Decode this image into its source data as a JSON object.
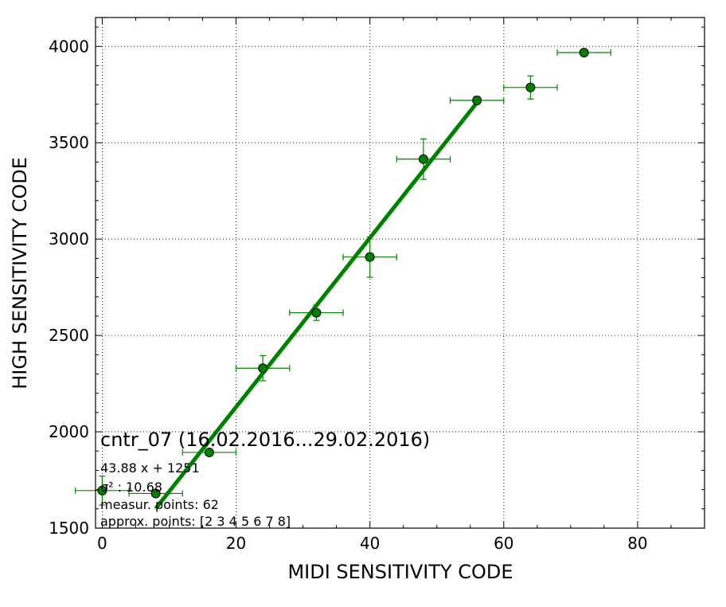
{
  "chart_data": {
    "type": "scatter",
    "xlabel": "MIDI SENSITIVITY CODE",
    "ylabel": "HIGH SENSITIVITY CODE",
    "xlim": [
      -1,
      90
    ],
    "ylim": [
      1500,
      4150
    ],
    "xticks": [
      0,
      20,
      40,
      60,
      80
    ],
    "xtick_labels": [
      "0",
      "20",
      "40",
      "60",
      "80"
    ],
    "yticks": [
      1500,
      2000,
      2500,
      3000,
      3500,
      4000
    ],
    "ytick_labels": [
      "1500",
      "2000",
      "2500",
      "3000",
      "3500",
      "4000"
    ],
    "grid": true,
    "color": "#008000",
    "points": [
      {
        "x": 0,
        "y": 1695,
        "xerr": 4,
        "yerr": 75
      },
      {
        "x": 8,
        "y": 1680,
        "xerr": 4,
        "yerr": 10
      },
      {
        "x": 16,
        "y": 1893,
        "xerr": 4,
        "yerr": 15
      },
      {
        "x": 24,
        "y": 2330,
        "xerr": 4,
        "yerr": 65
      },
      {
        "x": 32,
        "y": 2618,
        "xerr": 4,
        "yerr": 40
      },
      {
        "x": 40,
        "y": 2907,
        "xerr": 4,
        "yerr": 105
      },
      {
        "x": 48,
        "y": 3415,
        "xerr": 4,
        "yerr": 105
      },
      {
        "x": 56,
        "y": 3720,
        "xerr": 4,
        "yerr": 20
      },
      {
        "x": 64,
        "y": 3787,
        "xerr": 4,
        "yerr": 60
      },
      {
        "x": 72,
        "y": 3968,
        "xerr": 4,
        "yerr": 10
      }
    ],
    "fit_line": {
      "slope": 43.88,
      "intercept": 1251,
      "x_range": [
        8,
        56
      ]
    },
    "annotations": {
      "title": "cntr_07 (16.02.2016...29.02.2016)",
      "equation": "43.88 x + 1251",
      "sigma": "σ² : 10.68",
      "measur_points": "measur. points: 62",
      "approx_points": "approx. points: [2 3 4 5 6 7 8]"
    }
  }
}
